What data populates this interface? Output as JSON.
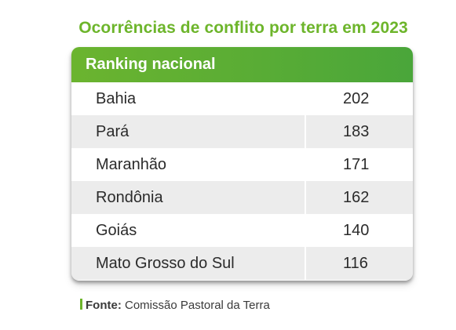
{
  "title": "Ocorrências de conflito por terra em 2023",
  "header": "Ranking nacional",
  "rows": [
    {
      "state": "Bahia",
      "count": "202"
    },
    {
      "state": "Pará",
      "count": "183"
    },
    {
      "state": "Maranhão",
      "count": "171"
    },
    {
      "state": "Rondônia",
      "count": "162"
    },
    {
      "state": "Goiás",
      "count": "140"
    },
    {
      "state": "Mato Grosso do Sul",
      "count": "116"
    }
  ],
  "source": {
    "label": "Fonte:",
    "text": "Comissão Pastoral da Terra"
  },
  "colors": {
    "accent": "#6db52b",
    "header_gradient_start": "#6bb42f",
    "header_gradient_end": "#4aa63a",
    "alt_row": "#ececec",
    "text": "#2b2b2b"
  },
  "chart_data": {
    "type": "table",
    "title": "Ocorrências de conflito por terra em 2023",
    "subtitle": "Ranking nacional",
    "categories": [
      "Bahia",
      "Pará",
      "Maranhão",
      "Rondônia",
      "Goiás",
      "Mato Grosso do Sul"
    ],
    "values": [
      202,
      183,
      171,
      162,
      140,
      116
    ]
  }
}
